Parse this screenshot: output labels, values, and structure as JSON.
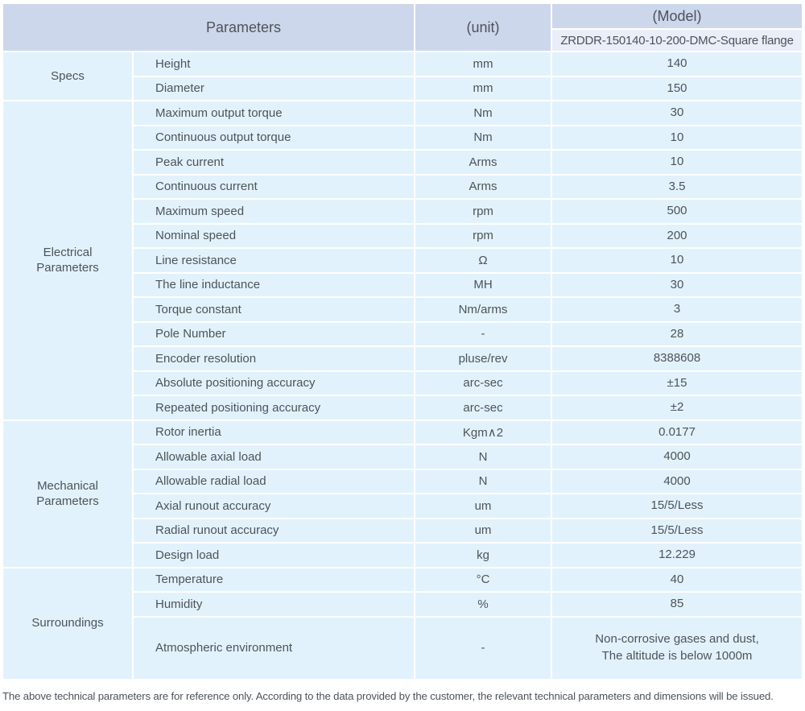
{
  "colors": {
    "header-bg": "#cdd7eb",
    "model-row-bg": "#e9eef8",
    "row-bg": "#e2f2fc",
    "text": "#4d5359",
    "page-bg": "#ffffff"
  },
  "table": {
    "header": {
      "parameters_label": "Parameters",
      "unit_label": "(unit)",
      "model_label": "(Model)",
      "model_value": "ZRDDR-150140-10-200-DMC-Square flange"
    },
    "sections": [
      {
        "group": "Specs",
        "rows": [
          {
            "parameter": "Height",
            "unit": "mm",
            "value": "140"
          },
          {
            "parameter": "Diameter",
            "unit": "mm",
            "value": "150"
          }
        ]
      },
      {
        "group": "Electrical\nParameters",
        "rows": [
          {
            "parameter": "Maximum output torque",
            "unit": "Nm",
            "value": "30"
          },
          {
            "parameter": "Continuous output torque",
            "unit": "Nm",
            "value": "10"
          },
          {
            "parameter": "Peak current",
            "unit": "Arms",
            "value": "10"
          },
          {
            "parameter": "Continuous current",
            "unit": "Arms",
            "value": "3.5"
          },
          {
            "parameter": "Maximum speed",
            "unit": "rpm",
            "value": "500"
          },
          {
            "parameter": "Nominal speed",
            "unit": "rpm",
            "value": "200"
          },
          {
            "parameter": "Line resistance",
            "unit": "Ω",
            "value": "10"
          },
          {
            "parameter": "The line inductance",
            "unit": "MH",
            "value": "30"
          },
          {
            "parameter": "Torque constant",
            "unit": "Nm/arms",
            "value": "3"
          },
          {
            "parameter": "Pole Number",
            "unit": "-",
            "value": "28"
          },
          {
            "parameter": "Encoder resolution",
            "unit": "pluse/rev",
            "value": "8388608"
          },
          {
            "parameter": "Absolute positioning accuracy",
            "unit": "arc-sec",
            "value": "±15"
          },
          {
            "parameter": "Repeated positioning accuracy",
            "unit": "arc-sec",
            "value": "±2"
          }
        ]
      },
      {
        "group": "Mechanical\nParameters",
        "rows": [
          {
            "parameter": "Rotor inertia",
            "unit": "Kgm∧2",
            "value": "0.0177"
          },
          {
            "parameter": "Allowable axial load",
            "unit": "N",
            "value": "4000"
          },
          {
            "parameter": "Allowable radial load",
            "unit": "N",
            "value": "4000"
          },
          {
            "parameter": "Axial runout accuracy",
            "unit": "um",
            "value": "15/5/Less"
          },
          {
            "parameter": "Radial runout accuracy",
            "unit": "um",
            "value": "15/5/Less"
          },
          {
            "parameter": "Design load",
            "unit": "kg",
            "value": "12.229"
          }
        ]
      },
      {
        "group": "Surroundings",
        "rows": [
          {
            "parameter": "Temperature",
            "unit": "°C",
            "value": "40"
          },
          {
            "parameter": "Humidity",
            "unit": "%",
            "value": "85"
          },
          {
            "parameter": "Atmospheric environment",
            "unit": "-",
            "value": "Non-corrosive gases and dust,\nThe altitude is below 1000m"
          }
        ]
      }
    ],
    "footnote": "The above technical parameters are for reference only. According to the data provided by the customer, the relevant technical parameters and dimensions will be issued."
  }
}
